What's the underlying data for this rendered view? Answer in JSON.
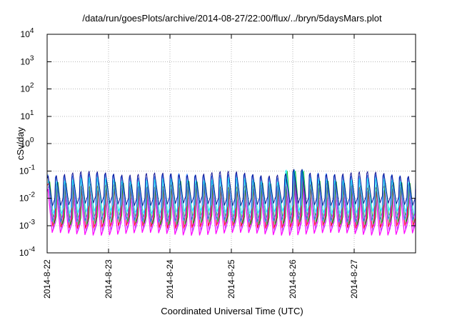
{
  "chart_data": {
    "type": "line",
    "title": "/data/run/goesPlots/archive/2014-08-27/22:00/flux/../bryn/5daysMars.plot",
    "xlabel": "Coordinated Universal Time (UTC)",
    "ylabel": "cSv/day",
    "x_range": [
      "2014-8-22",
      "2014-8-27"
    ],
    "x_ticks": [
      "2014-8-22",
      "2014-8-23",
      "2014-8-24",
      "2014-8-25",
      "2014-8-26",
      "2014-8-27"
    ],
    "x_tick_values": [
      0,
      1,
      2,
      3,
      4,
      5
    ],
    "x_domain_days": [
      0,
      6.0
    ],
    "y_scale": "log",
    "ylim": [
      0.0001,
      10000
    ],
    "y_ticks": [
      {
        "base": "10",
        "exp": "-4",
        "value": 0.0001
      },
      {
        "base": "10",
        "exp": "-3",
        "value": 0.001
      },
      {
        "base": "10",
        "exp": "-2",
        "value": 0.01
      },
      {
        "base": "10",
        "exp": "-1",
        "value": 0.1
      },
      {
        "base": "10",
        "exp": "0",
        "value": 1
      },
      {
        "base": "10",
        "exp": "1",
        "value": 10
      },
      {
        "base": "10",
        "exp": "2",
        "value": 100
      },
      {
        "base": "10",
        "exp": "3",
        "value": 1000
      },
      {
        "base": "10",
        "exp": "4",
        "value": 10000
      }
    ],
    "grid": true,
    "series": [
      {
        "color": "#ff00ff",
        "base_low": 0.0005,
        "base_high": 0.02,
        "phase": 0.0
      },
      {
        "color": "#cc33ff",
        "base_low": 0.0007,
        "base_high": 0.025,
        "phase": 0.02
      },
      {
        "color": "#ff0000",
        "base_low": 0.0009,
        "base_high": 0.03,
        "phase": 0.01
      },
      {
        "color": "#00aa00",
        "base_low": 0.0012,
        "base_high": 0.035,
        "phase": 0.03
      },
      {
        "color": "#1f78ff",
        "base_low": 0.0015,
        "base_high": 0.07,
        "phase": 0.0
      },
      {
        "color": "#00ffff",
        "base_low": 0.003,
        "base_high": 0.05,
        "phase": 0.015
      },
      {
        "color": "#000088",
        "base_low": 0.006,
        "base_high": 0.08,
        "phase": 0.005
      }
    ],
    "cycle_days": 0.1333333333,
    "spike_peak": 0.12,
    "spike_day": 4.06
  }
}
